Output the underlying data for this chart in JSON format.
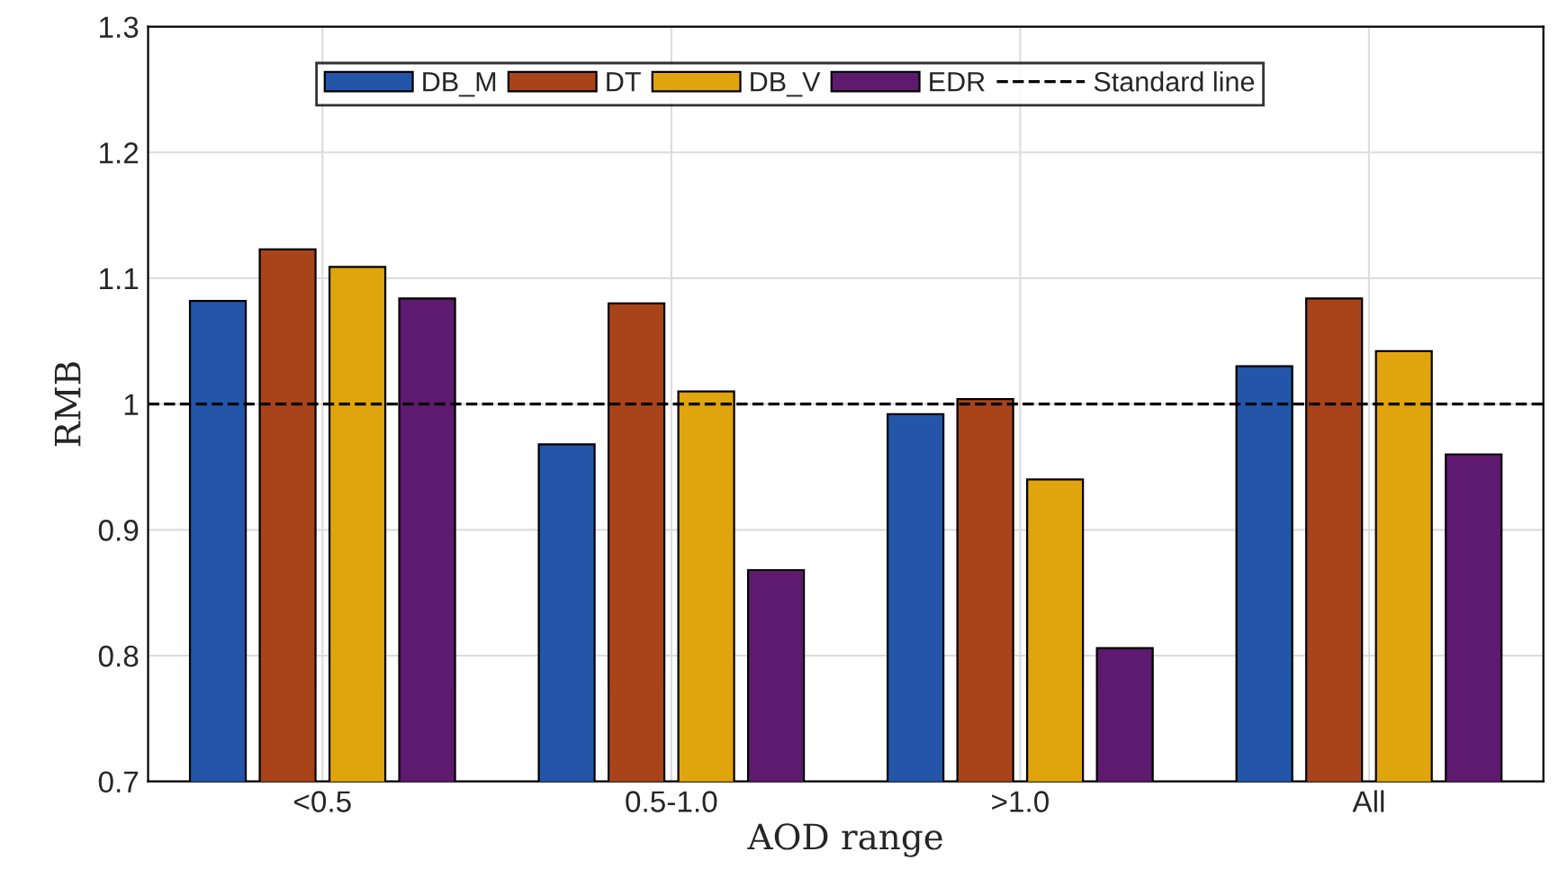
{
  "chart_data": {
    "type": "bar",
    "xlabel": "AOD range",
    "ylabel": "RMB",
    "categories": [
      "<0.5",
      "0.5-1.0",
      ">1.0",
      "All"
    ],
    "series": [
      {
        "name": "DB_M",
        "color": "#2356a8",
        "values": [
          1.082,
          0.968,
          0.992,
          1.03
        ]
      },
      {
        "name": "DT",
        "color": "#a9431a",
        "values": [
          1.123,
          1.08,
          1.004,
          1.084
        ]
      },
      {
        "name": "DB_V",
        "color": "#e0a50c",
        "values": [
          1.109,
          1.01,
          0.94,
          1.042
        ]
      },
      {
        "name": "EDR",
        "color": "#5e1a6e",
        "values": [
          1.084,
          0.868,
          0.806,
          0.96
        ]
      }
    ],
    "ref_lines": [
      {
        "axis": "y",
        "value": 1,
        "label": "Standard line",
        "color": "#000000",
        "line_style": "dashed"
      }
    ],
    "ylim": [
      0.7,
      1.3
    ],
    "yticks": [
      0.7,
      0.8,
      0.9,
      1,
      1.1,
      1.2,
      1.3
    ],
    "grid": true,
    "legend": "top"
  }
}
